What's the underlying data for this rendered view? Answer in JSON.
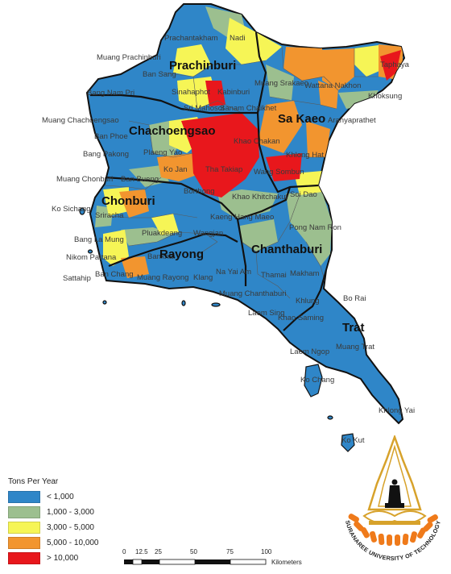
{
  "legend": {
    "title": "Tons Per Year",
    "items": [
      {
        "label": "< 1,000",
        "color": "#2f86c8"
      },
      {
        "label": "1,000 - 3,000",
        "color": "#9cbf8f"
      },
      {
        "label": "3,000 - 5,000",
        "color": "#f6f556"
      },
      {
        "label": "5,000 - 10,000",
        "color": "#f2952f"
      },
      {
        "label": "> 10,000",
        "color": "#e8171c"
      }
    ]
  },
  "provinces": {
    "prachinburi": "Prachinburi",
    "sa_kaeo": "Sa Kaeo",
    "chachoengsao": "Chachoengsao",
    "chonburi": "Chonburi",
    "rayong": "Rayong",
    "chanthaburi": "Chanthaburi",
    "trat": "Trat"
  },
  "districts": {
    "prachantakham": "Prachantakham",
    "nadi": "Nadi",
    "muang_prachinburi": "Muang Prachinburi",
    "ban_sang": "Ban Sang",
    "taphaya": "Taphaya",
    "muang_srakaeo": "Muang Srakaeo",
    "wattana_nakhon": "Wattana Nakhon",
    "khoksung": "Khoksung",
    "bang_nam_prieo": "Bang Nam Pri",
    "srimahosot": "Sri Mahosot",
    "sanam_chaikhet": "Sanam Chaikhet",
    "kabinburi": "Kabinburi",
    "sinahaphot": "Sinahaphot",
    "aranyaprathet": "Aranyaprathet",
    "muang_chachoengsao": "Muang Chachoengsao",
    "ban_pho": "Ban Phoe",
    "bang_pakong": "Bang Pakong",
    "plaeng_yao": "Plaeng Yao",
    "khao_chakan": "Khao Chakan",
    "khlong_hat": "Khlong Hat",
    "muang_chonburi": "Muang Chonburi",
    "ban_bueng": "Ban Bueng",
    "ko_jan": "Ko Jan",
    "tha_takiap": "Tha Takiap",
    "wang_sombun": "Wang Sombun",
    "ko_sichang": "Ko Sichang",
    "sriracha": "Sriracha",
    "bo_thong": "Borthong",
    "khao_khitchakut": "Khao Khitchakut",
    "soi_dao": "Soi Dao",
    "bang_lamung": "Bang La Mung",
    "kaeng_hang_maeo": "Kaeng Hang Maeo",
    "pong_nam_ron": "Pong Nam Ron",
    "nikom_phattana": "Nikom Pattana",
    "pluak_daeng": "Pluakdeang",
    "wang_chan": "Wangjan",
    "ban_khai": "Bankhai",
    "sattahip": "Sattahip",
    "ban_chang": "Ban Chang",
    "muang_rayong": "Muang Rayong",
    "klaeng": "Klang",
    "na_yai_am": "Na Yai Am",
    "tha_mai": "Thamai",
    "makham": "Makham",
    "muang_chanthaburi": "Muang Chanthaburi",
    "khlung": "Khlung",
    "laem_sing": "Laem Sing",
    "khao_saming": "Khao Saming",
    "bo_rai": "Bo Rai",
    "laem_ngop": "Laem Ngop",
    "muang_trat": "Muang Trat",
    "ko_chang": "Ko Chang",
    "khlong_yai": "Khlong Yai",
    "ko_kut": "Ko Kut"
  },
  "scale": {
    "ticks": [
      "0",
      "12.5",
      "25",
      "50",
      "75",
      "100"
    ],
    "unit": "Kilometers"
  },
  "logo": {
    "text": "SURANAREE UNIVERSITY OF TECHNOLOGY"
  }
}
